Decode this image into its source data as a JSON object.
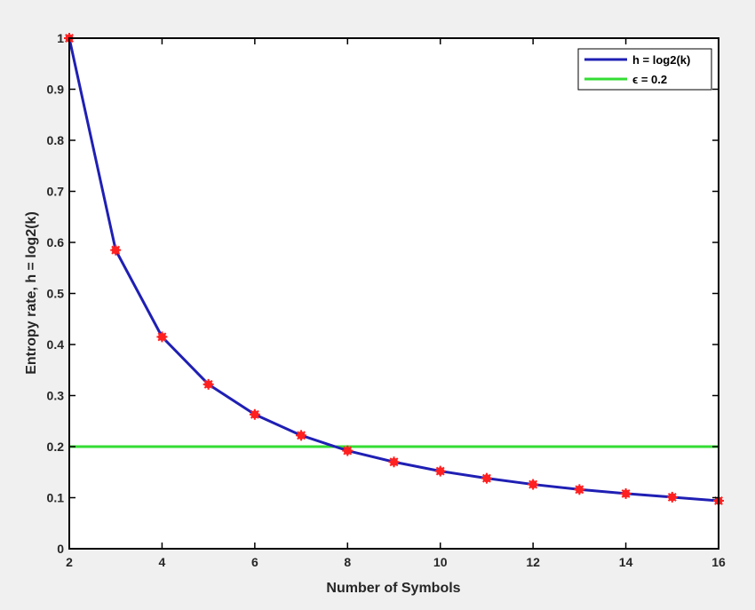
{
  "chart_data": {
    "type": "line",
    "title": "",
    "xlabel": "Number of Symbols",
    "ylabel": "Entropy rate, h = log2(k)",
    "xlim": [
      2,
      16
    ],
    "ylim": [
      0,
      1
    ],
    "xticks": [
      "2",
      "4",
      "6",
      "8",
      "10",
      "12",
      "14",
      "16"
    ],
    "yticks": [
      "0",
      "0.1",
      "0.2",
      "0.3",
      "0.4",
      "0.5",
      "0.6",
      "0.7",
      "0.8",
      "0.9",
      "1"
    ],
    "grid": false,
    "legend_position": "top-right",
    "series": [
      {
        "name": "h = log2(k)",
        "color": "#1f1fb4",
        "marker_color": "#ff2020",
        "x": [
          2,
          3,
          4,
          5,
          6,
          7,
          8,
          9,
          10,
          11,
          12,
          13,
          14,
          15,
          16
        ],
        "y": [
          1.0,
          0.585,
          0.415,
          0.322,
          0.263,
          0.222,
          0.192,
          0.17,
          0.152,
          0.138,
          0.126,
          0.116,
          0.108,
          0.101,
          0.094
        ]
      },
      {
        "name": "ϵ = 0.2",
        "color": "#33dd33",
        "x": [
          2,
          16
        ],
        "y": [
          0.2,
          0.2
        ]
      }
    ]
  }
}
